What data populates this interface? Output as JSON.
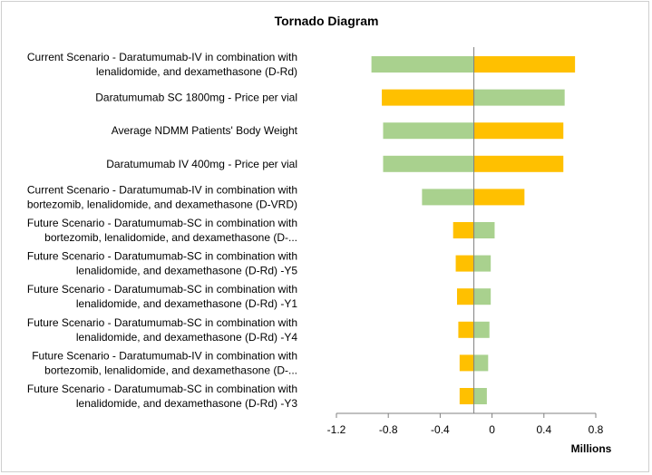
{
  "chart_data": {
    "type": "bar",
    "orientation": "horizontal",
    "subtype": "tornado",
    "title": "Tornado Diagram",
    "x_unit_label": "Millions",
    "xlim": [
      -1.2,
      0.8
    ],
    "x_ticks": [
      -1.2,
      -0.8,
      -0.4,
      0,
      0.4,
      0.8
    ],
    "x_tick_labels": [
      "-1.2",
      "-0.8",
      "-0.4",
      "0",
      "0.4",
      "0.8"
    ],
    "base_value": -0.14,
    "grid": false,
    "legend": "none",
    "colors": {
      "green": "#a9d18e",
      "orange": "#ffc000",
      "axis": "#808080"
    },
    "categories": [
      {
        "label_lines": [
          "Current Scenario - Daratumumab-IV in combination with",
          "lenalidomide, and dexamethasone (D-Rd)"
        ],
        "low": -0.93,
        "high": 0.64,
        "left_color": "green",
        "right_color": "orange"
      },
      {
        "label_lines": [
          "Daratumumab SC 1800mg - Price per vial"
        ],
        "low": -0.85,
        "high": 0.56,
        "left_color": "orange",
        "right_color": "green"
      },
      {
        "label_lines": [
          "Average NDMM Patients' Body Weight"
        ],
        "low": -0.84,
        "high": 0.55,
        "left_color": "green",
        "right_color": "orange"
      },
      {
        "label_lines": [
          "Daratumumab IV 400mg - Price per vial"
        ],
        "low": -0.84,
        "high": 0.55,
        "left_color": "green",
        "right_color": "orange"
      },
      {
        "label_lines": [
          "Current Scenario - Daratumumab-IV in combination with",
          "bortezomib, lenalidomide, and dexamethasone (D-VRD)"
        ],
        "low": -0.54,
        "high": 0.25,
        "left_color": "green",
        "right_color": "orange"
      },
      {
        "label_lines": [
          "Future Scenario - Daratumumab-SC in combination with",
          "bortezomib, lenalidomide, and dexamethasone (D-..."
        ],
        "low": -0.3,
        "high": 0.02,
        "left_color": "orange",
        "right_color": "green"
      },
      {
        "label_lines": [
          "Future Scenario - Daratumumab-SC in combination with",
          "lenalidomide, and dexamethasone (D-Rd) -Y5"
        ],
        "low": -0.28,
        "high": -0.01,
        "left_color": "orange",
        "right_color": "green"
      },
      {
        "label_lines": [
          "Future Scenario - Daratumumab-SC in combination with",
          "lenalidomide, and dexamethasone (D-Rd) -Y1"
        ],
        "low": -0.27,
        "high": -0.01,
        "left_color": "orange",
        "right_color": "green"
      },
      {
        "label_lines": [
          "Future Scenario - Daratumumab-SC in combination with",
          "lenalidomide, and dexamethasone (D-Rd) -Y4"
        ],
        "low": -0.26,
        "high": -0.02,
        "left_color": "orange",
        "right_color": "green"
      },
      {
        "label_lines": [
          "Future Scenario - Daratumumab-IV in combination with",
          "bortezomib, lenalidomide, and dexamethasone (D-..."
        ],
        "low": -0.25,
        "high": -0.03,
        "left_color": "orange",
        "right_color": "green"
      },
      {
        "label_lines": [
          "Future Scenario - Daratumumab-SC in combination with",
          "lenalidomide, and dexamethasone (D-Rd) -Y3"
        ],
        "low": -0.25,
        "high": -0.04,
        "left_color": "orange",
        "right_color": "green"
      }
    ]
  }
}
